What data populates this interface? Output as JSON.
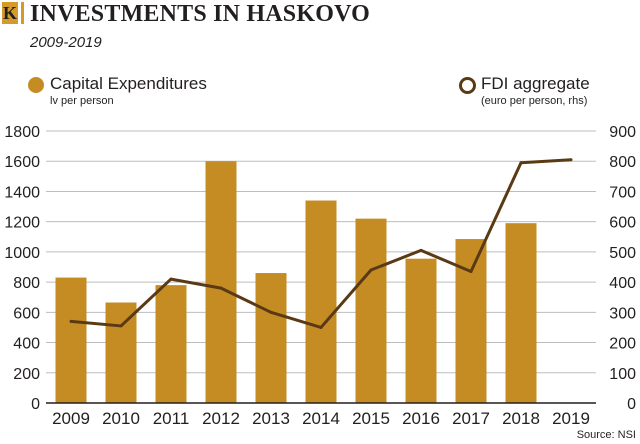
{
  "header": {
    "logo_letter": "K",
    "title": "INVESTMENTS IN HASKOVO",
    "subtitle": "2009-2019"
  },
  "legend": {
    "left": {
      "name": "Capital Expenditures",
      "unit": "lv per person"
    },
    "right": {
      "name": "FDI aggregate",
      "unit": "(euro per person, rhs)"
    }
  },
  "source": "Source: NSI",
  "colors": {
    "bar": "#c68c24",
    "line": "#5a3a14",
    "accent": "#d49a2a",
    "grid": "#bdbdbd"
  },
  "chart_data": {
    "type": "bar",
    "categories": [
      "2009",
      "2010",
      "2011",
      "2012",
      "2013",
      "2014",
      "2015",
      "2016",
      "2017",
      "2018",
      "2019"
    ],
    "left_axis": {
      "ylim": [
        0,
        1800
      ],
      "ticks": [
        "0",
        "200",
        "400",
        "600",
        "800",
        "1000",
        "1200",
        "1400",
        "1600",
        "1800"
      ]
    },
    "right_axis": {
      "ylim": [
        0,
        900
      ],
      "ticks": [
        "0",
        "100",
        "200",
        "300",
        "400",
        "500",
        "600",
        "700",
        "800",
        "900"
      ]
    },
    "grid": true,
    "legend_position": "top",
    "series": [
      {
        "name": "Capital Expenditures",
        "type": "bar",
        "axis": "left",
        "values": [
          830,
          665,
          780,
          1600,
          860,
          1340,
          1220,
          955,
          1085,
          1190,
          null
        ]
      },
      {
        "name": "FDI aggregate",
        "type": "line",
        "axis": "right",
        "values": [
          270,
          255,
          410,
          380,
          300,
          250,
          440,
          505,
          435,
          795,
          805
        ]
      }
    ]
  }
}
